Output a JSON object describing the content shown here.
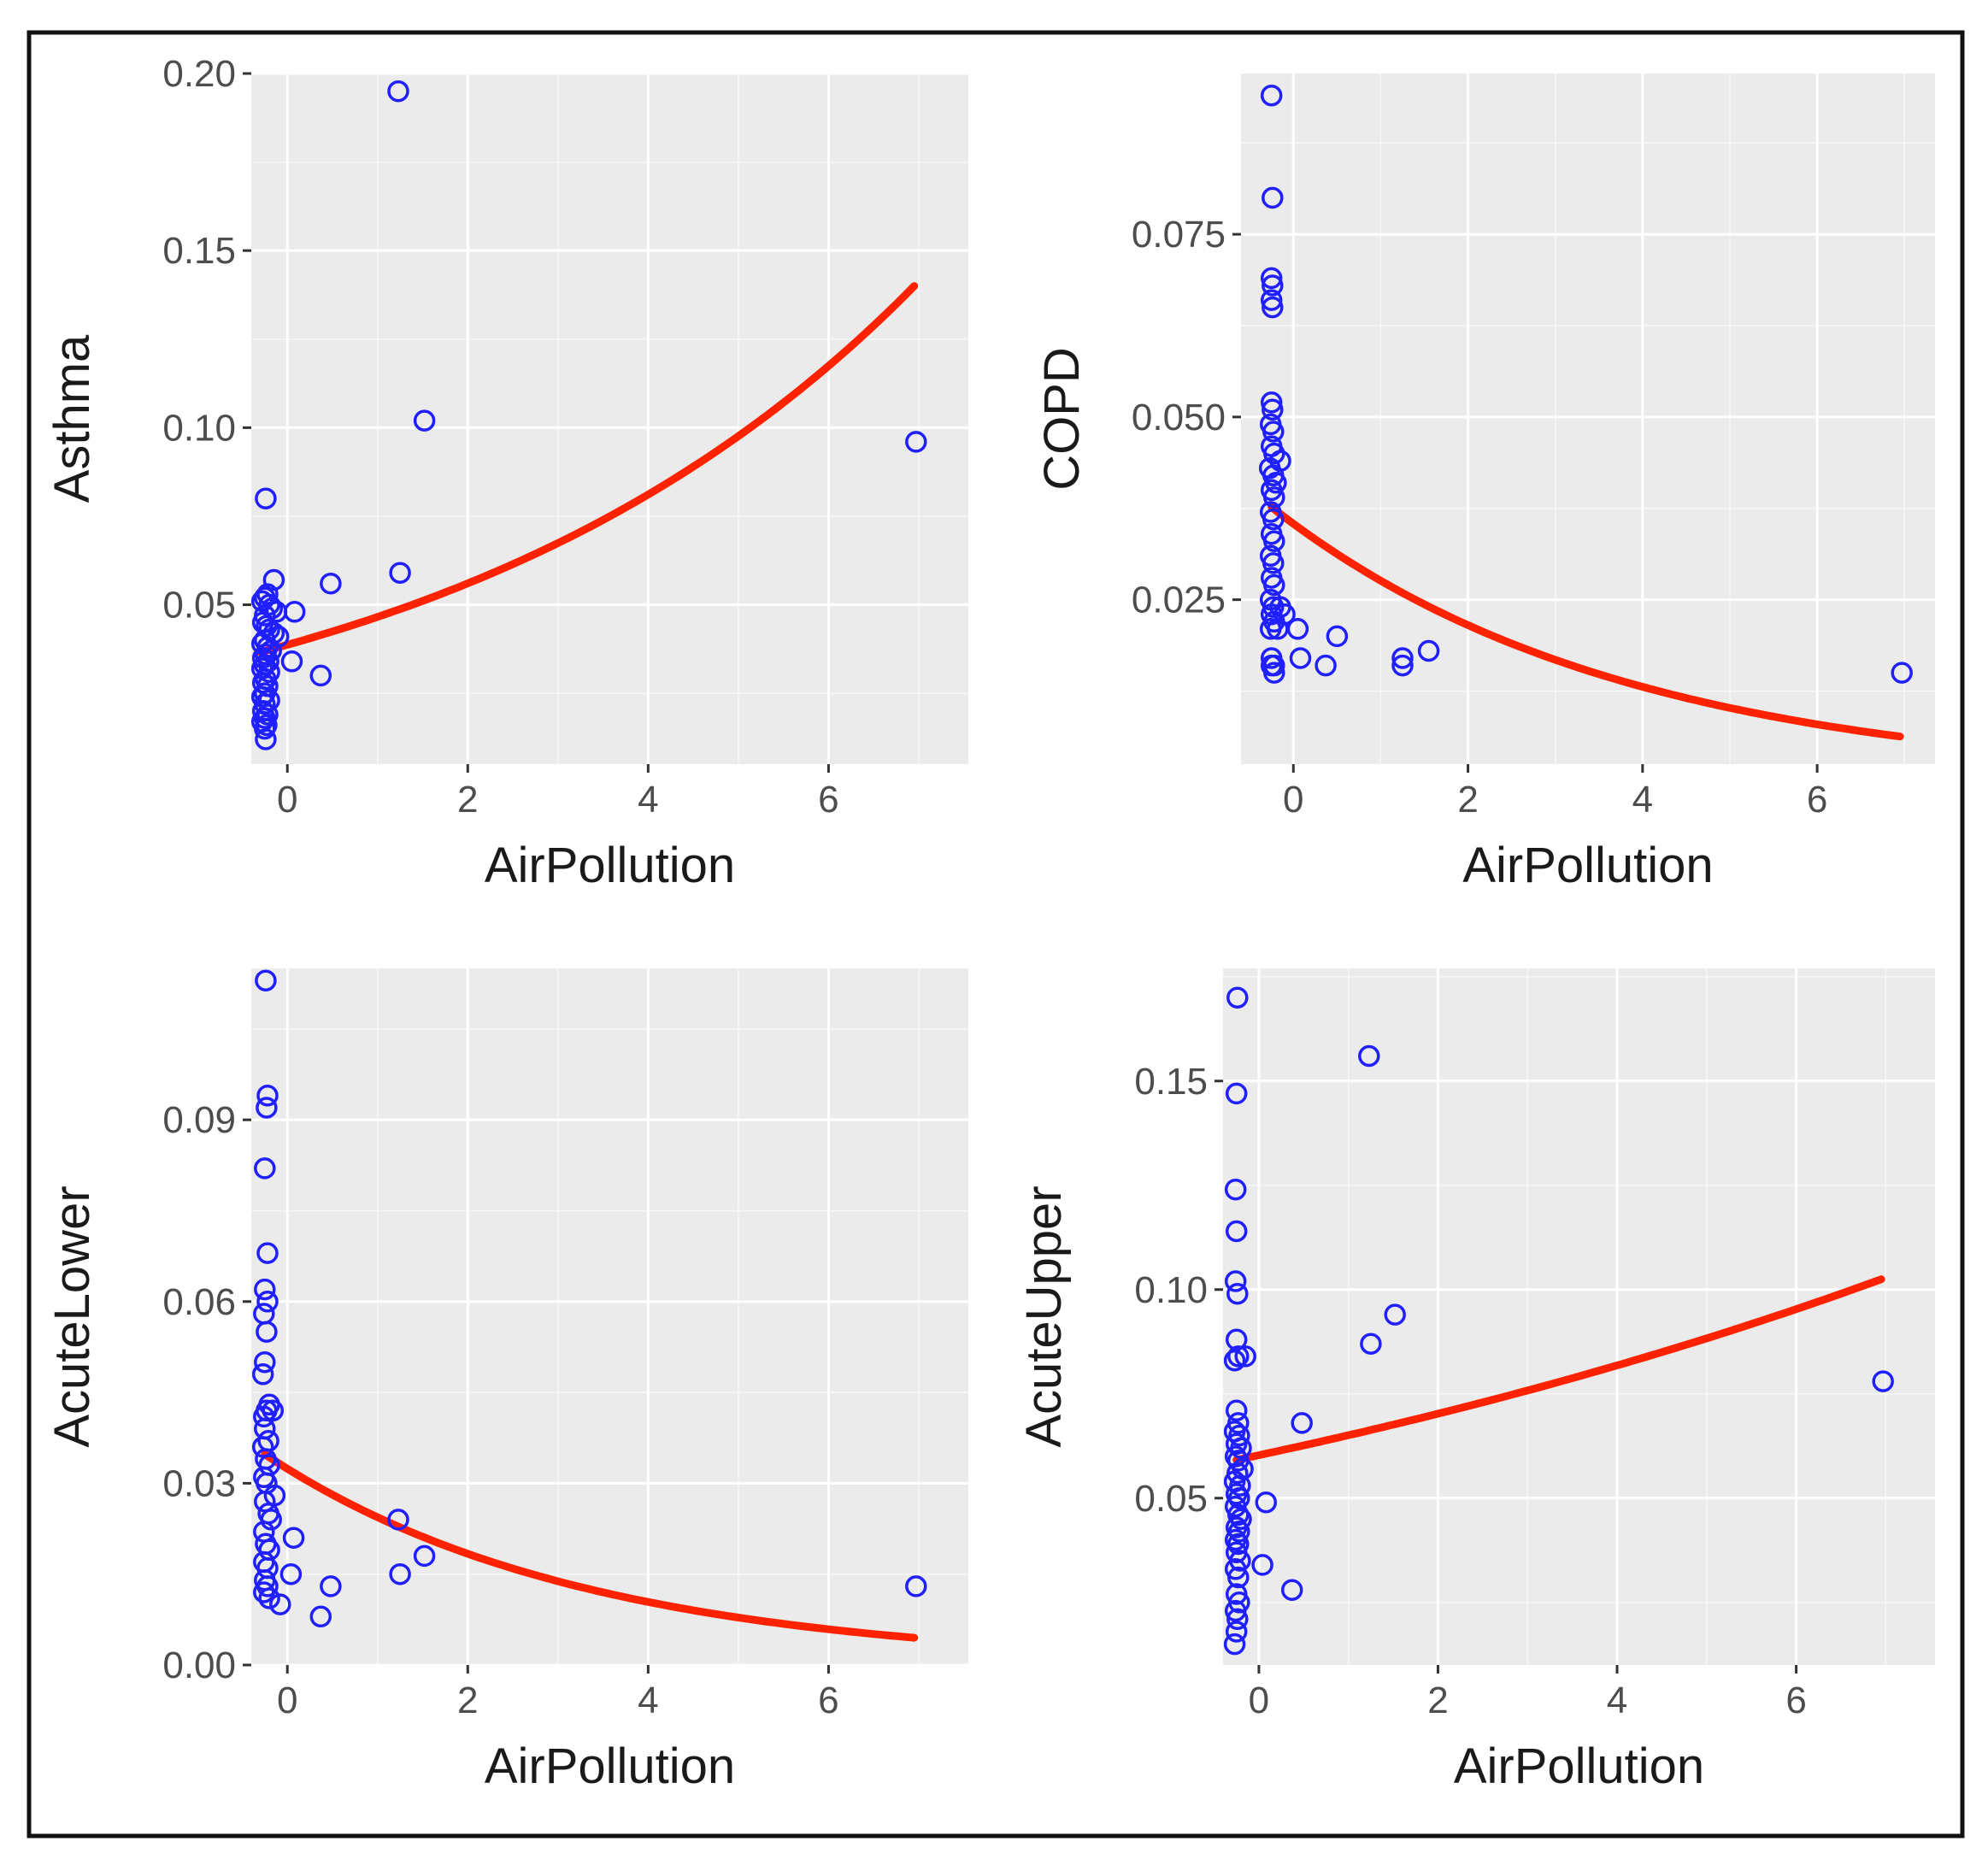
{
  "colors": {
    "points": "#1f1fff",
    "fit": "#ff2200"
  },
  "chart_data": [
    {
      "type": "scatter",
      "xlabel": "AirPollution",
      "ylabel": "Asthma",
      "xlim": [
        -0.4,
        7.55
      ],
      "ylim": [
        0.005,
        0.2
      ],
      "xticks": [
        0,
        2,
        4,
        6
      ],
      "xtick_labels": [
        "0",
        "2",
        "4",
        "6"
      ],
      "yticks": [
        0.05,
        0.1,
        0.15,
        0.2
      ],
      "ytick_labels": [
        "0.05",
        "0.10",
        "0.15",
        "0.20"
      ],
      "points": [
        [
          1.23,
          0.195
        ],
        [
          1.52,
          0.102
        ],
        [
          6.97,
          0.096
        ],
        [
          -0.24,
          0.08
        ],
        [
          1.25,
          0.059
        ],
        [
          0.48,
          0.056
        ],
        [
          -0.15,
          0.057
        ],
        [
          -0.25,
          0.052
        ],
        [
          -0.28,
          0.051
        ],
        [
          -0.22,
          0.053
        ],
        [
          -0.2,
          0.05
        ],
        [
          -0.17,
          0.049
        ],
        [
          -0.12,
          0.048
        ],
        [
          0.08,
          0.048
        ],
        [
          -0.25,
          0.047
        ],
        [
          -0.27,
          0.045
        ],
        [
          -0.23,
          0.044
        ],
        [
          -0.2,
          0.043
        ],
        [
          -0.15,
          0.042
        ],
        [
          -0.1,
          0.041
        ],
        [
          -0.25,
          0.04
        ],
        [
          -0.28,
          0.039
        ],
        [
          -0.22,
          0.038
        ],
        [
          -0.18,
          0.037
        ],
        [
          -0.24,
          0.036
        ],
        [
          -0.27,
          0.035
        ],
        [
          -0.21,
          0.034
        ],
        [
          0.05,
          0.034
        ],
        [
          -0.25,
          0.033
        ],
        [
          -0.28,
          0.032
        ],
        [
          -0.2,
          0.031
        ],
        [
          0.37,
          0.03
        ],
        [
          -0.24,
          0.029
        ],
        [
          -0.27,
          0.028
        ],
        [
          -0.22,
          0.027
        ],
        [
          -0.25,
          0.025
        ],
        [
          -0.28,
          0.024
        ],
        [
          -0.2,
          0.023
        ],
        [
          -0.25,
          0.022
        ],
        [
          -0.27,
          0.02
        ],
        [
          -0.22,
          0.019
        ],
        [
          -0.25,
          0.018
        ],
        [
          -0.28,
          0.017
        ],
        [
          -0.23,
          0.016
        ],
        [
          -0.25,
          0.015
        ],
        [
          -0.24,
          0.012
        ]
      ],
      "fit": {
        "model": "exponential",
        "a": 0.0387,
        "b": 0.185,
        "x_range": [
          -0.3,
          6.95
        ]
      }
    },
    {
      "type": "scatter",
      "xlabel": "AirPollution",
      "ylabel": "COPD",
      "xlim": [
        -0.6,
        7.35
      ],
      "ylim": [
        0.0025,
        0.097
      ],
      "xticks": [
        0,
        2,
        4,
        6
      ],
      "xtick_labels": [
        "0",
        "2",
        "4",
        "6"
      ],
      "yticks": [
        0.025,
        0.05,
        0.075
      ],
      "ytick_labels": [
        "0.025",
        "0.050",
        "0.075"
      ],
      "points": [
        [
          -0.25,
          0.094
        ],
        [
          -0.24,
          0.08
        ],
        [
          -0.25,
          0.069
        ],
        [
          -0.24,
          0.068
        ],
        [
          -0.25,
          0.066
        ],
        [
          -0.24,
          0.065
        ],
        [
          -0.25,
          0.052
        ],
        [
          -0.24,
          0.051
        ],
        [
          -0.26,
          0.049
        ],
        [
          -0.23,
          0.048
        ],
        [
          -0.25,
          0.046
        ],
        [
          -0.22,
          0.045
        ],
        [
          -0.15,
          0.044
        ],
        [
          -0.27,
          0.043
        ],
        [
          -0.23,
          0.042
        ],
        [
          -0.2,
          0.041
        ],
        [
          -0.25,
          0.04
        ],
        [
          -0.22,
          0.039
        ],
        [
          -0.26,
          0.037
        ],
        [
          -0.23,
          0.036
        ],
        [
          -0.25,
          0.034
        ],
        [
          -0.22,
          0.033
        ],
        [
          -0.26,
          0.031
        ],
        [
          -0.23,
          0.03
        ],
        [
          -0.25,
          0.028
        ],
        [
          -0.22,
          0.027
        ],
        [
          -0.26,
          0.025
        ],
        [
          -0.23,
          0.024
        ],
        [
          -0.15,
          0.024
        ],
        [
          -0.25,
          0.023
        ],
        [
          -0.1,
          0.023
        ],
        [
          -0.22,
          0.022
        ],
        [
          -0.26,
          0.021
        ],
        [
          0.05,
          0.021
        ],
        [
          -0.18,
          0.021
        ],
        [
          0.5,
          0.02
        ],
        [
          1.55,
          0.018
        ],
        [
          0.08,
          0.017
        ],
        [
          1.25,
          0.017
        ],
        [
          -0.25,
          0.017
        ],
        [
          -0.22,
          0.016
        ],
        [
          0.37,
          0.016
        ],
        [
          -0.25,
          0.016
        ],
        [
          1.25,
          0.016
        ],
        [
          -0.22,
          0.015
        ],
        [
          6.97,
          0.015
        ]
      ],
      "fit": {
        "model": "exponential",
        "a": 0.0354,
        "b": -0.249,
        "x_range": [
          -0.25,
          6.95
        ]
      }
    },
    {
      "type": "scatter",
      "xlabel": "AirPollution",
      "ylabel": "AcuteLower",
      "xlim": [
        -0.4,
        7.55
      ],
      "ylim": [
        0.0,
        0.115
      ],
      "xticks": [
        0,
        2,
        4,
        6
      ],
      "xtick_labels": [
        "0",
        "2",
        "4",
        "6"
      ],
      "yticks": [
        0.0,
        0.03,
        0.06,
        0.09
      ],
      "ytick_labels": [
        "0.00",
        "0.03",
        "0.06",
        "0.09"
      ],
      "points": [
        [
          -0.24,
          0.113
        ],
        [
          -0.22,
          0.094
        ],
        [
          -0.23,
          0.092
        ],
        [
          -0.25,
          0.082
        ],
        [
          -0.22,
          0.068
        ],
        [
          -0.25,
          0.062
        ],
        [
          -0.22,
          0.06
        ],
        [
          -0.26,
          0.058
        ],
        [
          -0.23,
          0.055
        ],
        [
          -0.25,
          0.05
        ],
        [
          -0.27,
          0.048
        ],
        [
          -0.2,
          0.043
        ],
        [
          -0.23,
          0.042
        ],
        [
          -0.16,
          0.042
        ],
        [
          -0.26,
          0.041
        ],
        [
          -0.25,
          0.039
        ],
        [
          -0.21,
          0.037
        ],
        [
          -0.27,
          0.036
        ],
        [
          -0.24,
          0.034
        ],
        [
          -0.2,
          0.033
        ],
        [
          -0.26,
          0.031
        ],
        [
          -0.23,
          0.03
        ],
        [
          -0.14,
          0.028
        ],
        [
          -0.25,
          0.027
        ],
        [
          -0.21,
          0.025
        ],
        [
          1.23,
          0.024
        ],
        [
          -0.18,
          0.024
        ],
        [
          -0.26,
          0.022
        ],
        [
          0.07,
          0.021
        ],
        [
          -0.24,
          0.02
        ],
        [
          -0.2,
          0.019
        ],
        [
          1.52,
          0.018
        ],
        [
          -0.26,
          0.017
        ],
        [
          -0.22,
          0.016
        ],
        [
          0.04,
          0.015
        ],
        [
          1.25,
          0.015
        ],
        [
          -0.25,
          0.014
        ],
        [
          0.48,
          0.013
        ],
        [
          -0.22,
          0.013
        ],
        [
          6.97,
          0.013
        ],
        [
          -0.26,
          0.012
        ],
        [
          -0.2,
          0.011
        ],
        [
          -0.08,
          0.01
        ],
        [
          0.37,
          0.008
        ]
      ],
      "fit": {
        "model": "exponential",
        "a": 0.0324,
        "b": -0.284,
        "x_range": [
          -0.25,
          6.95
        ]
      }
    },
    {
      "type": "scatter",
      "xlabel": "AirPollution",
      "ylabel": "AcuteUpper",
      "xlim": [
        -0.4,
        7.55
      ],
      "ylim": [
        0.01,
        0.177
      ],
      "xticks": [
        0,
        2,
        4,
        6
      ],
      "xtick_labels": [
        "0",
        "2",
        "4",
        "6"
      ],
      "yticks": [
        0.05,
        0.1,
        0.15
      ],
      "ytick_labels": [
        "0.05",
        "0.10",
        "0.15"
      ],
      "points": [
        [
          -0.24,
          0.17
        ],
        [
          1.23,
          0.156
        ],
        [
          -0.25,
          0.147
        ],
        [
          -0.26,
          0.124
        ],
        [
          -0.25,
          0.114
        ],
        [
          -0.26,
          0.102
        ],
        [
          -0.24,
          0.099
        ],
        [
          1.52,
          0.094
        ],
        [
          -0.25,
          0.088
        ],
        [
          1.25,
          0.087
        ],
        [
          -0.23,
          0.084
        ],
        [
          -0.15,
          0.084
        ],
        [
          -0.27,
          0.083
        ],
        [
          6.97,
          0.078
        ],
        [
          -0.25,
          0.071
        ],
        [
          -0.23,
          0.068
        ],
        [
          0.48,
          0.068
        ],
        [
          -0.27,
          0.066
        ],
        [
          -0.22,
          0.065
        ],
        [
          -0.25,
          0.063
        ],
        [
          -0.2,
          0.062
        ],
        [
          -0.26,
          0.06
        ],
        [
          -0.23,
          0.059
        ],
        [
          -0.18,
          0.057
        ],
        [
          -0.24,
          0.056
        ],
        [
          -0.27,
          0.054
        ],
        [
          -0.21,
          0.053
        ],
        [
          -0.25,
          0.051
        ],
        [
          -0.22,
          0.05
        ],
        [
          0.08,
          0.049
        ],
        [
          -0.26,
          0.048
        ],
        [
          -0.23,
          0.046
        ],
        [
          -0.2,
          0.045
        ],
        [
          -0.25,
          0.043
        ],
        [
          -0.22,
          0.042
        ],
        [
          -0.26,
          0.04
        ],
        [
          -0.23,
          0.039
        ],
        [
          -0.25,
          0.037
        ],
        [
          -0.21,
          0.035
        ],
        [
          0.04,
          0.034
        ],
        [
          -0.26,
          0.033
        ],
        [
          -0.23,
          0.031
        ],
        [
          0.37,
          0.028
        ],
        [
          -0.25,
          0.027
        ],
        [
          -0.22,
          0.025
        ],
        [
          -0.26,
          0.023
        ],
        [
          -0.24,
          0.021
        ],
        [
          -0.25,
          0.018
        ],
        [
          -0.27,
          0.015
        ]
      ],
      "fit": {
        "model": "exponential",
        "a": 0.0603,
        "b": 0.0763,
        "x_range": [
          -0.25,
          6.95
        ]
      }
    }
  ]
}
